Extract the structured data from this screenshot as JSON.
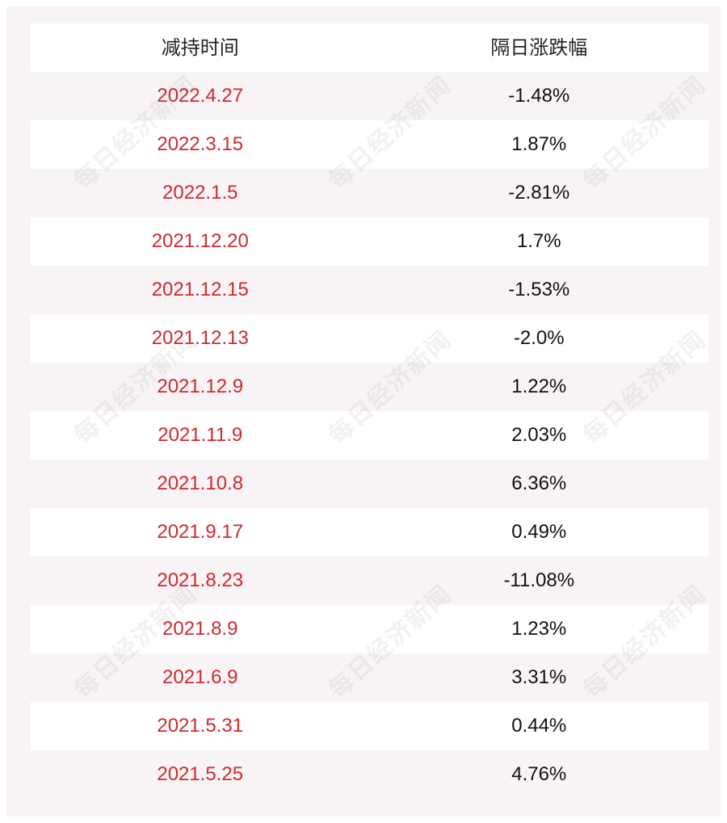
{
  "table": {
    "headers": {
      "date": "减持时间",
      "change": "隔日涨跌幅"
    },
    "rows": [
      {
        "date": "2022.4.27",
        "change": "-1.48%"
      },
      {
        "date": "2022.3.15",
        "change": "1.87%"
      },
      {
        "date": "2022.1.5",
        "change": "-2.81%"
      },
      {
        "date": "2021.12.20",
        "change": "1.7%"
      },
      {
        "date": "2021.12.15",
        "change": "-1.53%"
      },
      {
        "date": "2021.12.13",
        "change": "-2.0%"
      },
      {
        "date": "2021.12.9",
        "change": "1.22%"
      },
      {
        "date": "2021.11.9",
        "change": "2.03%"
      },
      {
        "date": "2021.10.8",
        "change": "6.36%"
      },
      {
        "date": "2021.9.17",
        "change": "0.49%"
      },
      {
        "date": "2021.8.23",
        "change": "-11.08%"
      },
      {
        "date": "2021.8.9",
        "change": "1.23%"
      },
      {
        "date": "2021.6.9",
        "change": "3.31%"
      },
      {
        "date": "2021.5.31",
        "change": "0.44%"
      },
      {
        "date": "2021.5.25",
        "change": "4.76%"
      }
    ]
  },
  "watermark": {
    "text": "每日经济新闻"
  },
  "colors": {
    "date_text": "#d0282e",
    "background": "#f8f4f5",
    "row_shade": "#ffffff"
  }
}
